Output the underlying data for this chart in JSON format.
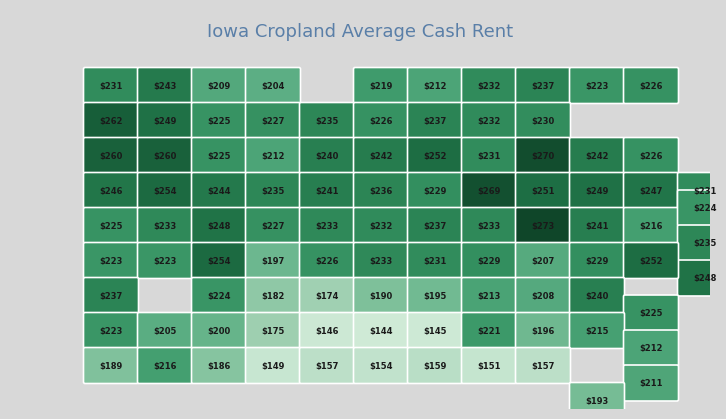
{
  "title": "Iowa Cropland Average Cash Rent",
  "bg_color": "#d8d8d8",
  "title_color": "#5a7fa8",
  "text_color": "#1a1a1a",
  "colormap_min": 140,
  "colormap_max": 275,
  "counties": [
    {
      "row": 0.0,
      "col": 0,
      "value": 231
    },
    {
      "row": 0.0,
      "col": 1,
      "value": 243
    },
    {
      "row": 0.0,
      "col": 2,
      "value": 209
    },
    {
      "row": 0.0,
      "col": 3,
      "value": 204
    },
    {
      "row": 0.0,
      "col": 5,
      "value": 219
    },
    {
      "row": 0.0,
      "col": 6,
      "value": 212
    },
    {
      "row": 0.0,
      "col": 7,
      "value": 232
    },
    {
      "row": 0.0,
      "col": 8,
      "value": 237
    },
    {
      "row": 0.0,
      "col": 9,
      "value": 223
    },
    {
      "row": 0.0,
      "col": 10,
      "value": 226
    },
    {
      "row": 1.0,
      "col": 0,
      "value": 262
    },
    {
      "row": 1.0,
      "col": 1,
      "value": 249
    },
    {
      "row": 1.0,
      "col": 2,
      "value": 225
    },
    {
      "row": 1.0,
      "col": 3,
      "value": 227
    },
    {
      "row": 1.0,
      "col": 4,
      "value": 235
    },
    {
      "row": 1.0,
      "col": 5,
      "value": 226
    },
    {
      "row": 1.0,
      "col": 6,
      "value": 237
    },
    {
      "row": 1.0,
      "col": 7,
      "value": 232
    },
    {
      "row": 1.0,
      "col": 8,
      "value": 230
    },
    {
      "row": 2.0,
      "col": 0,
      "value": 260
    },
    {
      "row": 2.0,
      "col": 1,
      "value": 260
    },
    {
      "row": 2.0,
      "col": 2,
      "value": 225
    },
    {
      "row": 2.0,
      "col": 3,
      "value": 212
    },
    {
      "row": 2.0,
      "col": 4,
      "value": 240
    },
    {
      "row": 2.0,
      "col": 5,
      "value": 242
    },
    {
      "row": 2.0,
      "col": 6,
      "value": 252
    },
    {
      "row": 2.0,
      "col": 7,
      "value": 231
    },
    {
      "row": 2.0,
      "col": 8,
      "value": 270
    },
    {
      "row": 2.0,
      "col": 9,
      "value": 242
    },
    {
      "row": 2.0,
      "col": 10,
      "value": 226
    },
    {
      "row": 3.0,
      "col": 0,
      "value": 246
    },
    {
      "row": 3.0,
      "col": 1,
      "value": 254
    },
    {
      "row": 3.0,
      "col": 2,
      "value": 244
    },
    {
      "row": 3.0,
      "col": 3,
      "value": 235
    },
    {
      "row": 3.0,
      "col": 4,
      "value": 241
    },
    {
      "row": 3.0,
      "col": 5,
      "value": 236
    },
    {
      "row": 3.0,
      "col": 6,
      "value": 229
    },
    {
      "row": 3.0,
      "col": 7,
      "value": 269
    },
    {
      "row": 3.0,
      "col": 8,
      "value": 251
    },
    {
      "row": 3.0,
      "col": 9,
      "value": 249
    },
    {
      "row": 3.0,
      "col": 10,
      "value": 247
    },
    {
      "row": 3.0,
      "col": 11,
      "value": 231
    },
    {
      "row": 4.0,
      "col": 0,
      "value": 225
    },
    {
      "row": 4.0,
      "col": 1,
      "value": 233
    },
    {
      "row": 4.0,
      "col": 2,
      "value": 248
    },
    {
      "row": 4.0,
      "col": 3,
      "value": 227
    },
    {
      "row": 4.0,
      "col": 4,
      "value": 233
    },
    {
      "row": 4.0,
      "col": 5,
      "value": 232
    },
    {
      "row": 4.0,
      "col": 6,
      "value": 237
    },
    {
      "row": 4.0,
      "col": 7,
      "value": 233
    },
    {
      "row": 4.0,
      "col": 8,
      "value": 273
    },
    {
      "row": 4.0,
      "col": 9,
      "value": 241
    },
    {
      "row": 4.0,
      "col": 10,
      "value": 216
    },
    {
      "row": 3.5,
      "col": 11,
      "value": 224
    },
    {
      "row": 4.5,
      "col": 11,
      "value": 235
    },
    {
      "row": 5.5,
      "col": 11,
      "value": 248
    },
    {
      "row": 5.0,
      "col": 0,
      "value": 223
    },
    {
      "row": 5.0,
      "col": 1,
      "value": 223
    },
    {
      "row": 5.0,
      "col": 2,
      "value": 254
    },
    {
      "row": 5.0,
      "col": 3,
      "value": 197
    },
    {
      "row": 5.0,
      "col": 4,
      "value": 226
    },
    {
      "row": 5.0,
      "col": 5,
      "value": 233
    },
    {
      "row": 5.0,
      "col": 6,
      "value": 231
    },
    {
      "row": 5.0,
      "col": 7,
      "value": 229
    },
    {
      "row": 5.0,
      "col": 8,
      "value": 207
    },
    {
      "row": 5.0,
      "col": 9,
      "value": 229
    },
    {
      "row": 5.0,
      "col": 10,
      "value": 252
    },
    {
      "row": 6.0,
      "col": 0,
      "value": 237
    },
    {
      "row": 6.0,
      "col": 2,
      "value": 224
    },
    {
      "row": 6.0,
      "col": 3,
      "value": 182
    },
    {
      "row": 6.0,
      "col": 4,
      "value": 174
    },
    {
      "row": 6.0,
      "col": 5,
      "value": 190
    },
    {
      "row": 6.0,
      "col": 6,
      "value": 195
    },
    {
      "row": 6.0,
      "col": 7,
      "value": 213
    },
    {
      "row": 6.0,
      "col": 8,
      "value": 208
    },
    {
      "row": 6.0,
      "col": 9,
      "value": 240
    },
    {
      "row": 6.5,
      "col": 10,
      "value": 225
    },
    {
      "row": 7.0,
      "col": 0,
      "value": 223
    },
    {
      "row": 7.0,
      "col": 1,
      "value": 205
    },
    {
      "row": 7.0,
      "col": 2,
      "value": 200
    },
    {
      "row": 7.0,
      "col": 3,
      "value": 175
    },
    {
      "row": 7.0,
      "col": 4,
      "value": 146
    },
    {
      "row": 7.0,
      "col": 5,
      "value": 144
    },
    {
      "row": 7.0,
      "col": 6,
      "value": 145
    },
    {
      "row": 7.0,
      "col": 7,
      "value": 221
    },
    {
      "row": 7.0,
      "col": 8,
      "value": 196
    },
    {
      "row": 7.0,
      "col": 9,
      "value": 215
    },
    {
      "row": 7.5,
      "col": 10,
      "value": 212
    },
    {
      "row": 8.0,
      "col": 0,
      "value": 189
    },
    {
      "row": 8.0,
      "col": 1,
      "value": 216
    },
    {
      "row": 8.0,
      "col": 2,
      "value": 186
    },
    {
      "row": 8.0,
      "col": 3,
      "value": 149
    },
    {
      "row": 8.0,
      "col": 4,
      "value": 157
    },
    {
      "row": 8.0,
      "col": 5,
      "value": 154
    },
    {
      "row": 8.0,
      "col": 6,
      "value": 159
    },
    {
      "row": 8.0,
      "col": 7,
      "value": 151
    },
    {
      "row": 8.0,
      "col": 8,
      "value": 157
    },
    {
      "row": 8.5,
      "col": 10,
      "value": 211
    },
    {
      "row": 9.0,
      "col": 9,
      "value": 193
    }
  ],
  "green_colors": [
    [
      140,
      "#d4edda"
    ],
    [
      160,
      "#b8ddc5"
    ],
    [
      175,
      "#9ecfb0"
    ],
    [
      190,
      "#7dc09a"
    ],
    [
      205,
      "#5aad82"
    ],
    [
      220,
      "#3d9a6a"
    ],
    [
      235,
      "#2d8757"
    ],
    [
      250,
      "#1e7045"
    ],
    [
      265,
      "#165a36"
    ],
    [
      275,
      "#0e4227"
    ]
  ]
}
